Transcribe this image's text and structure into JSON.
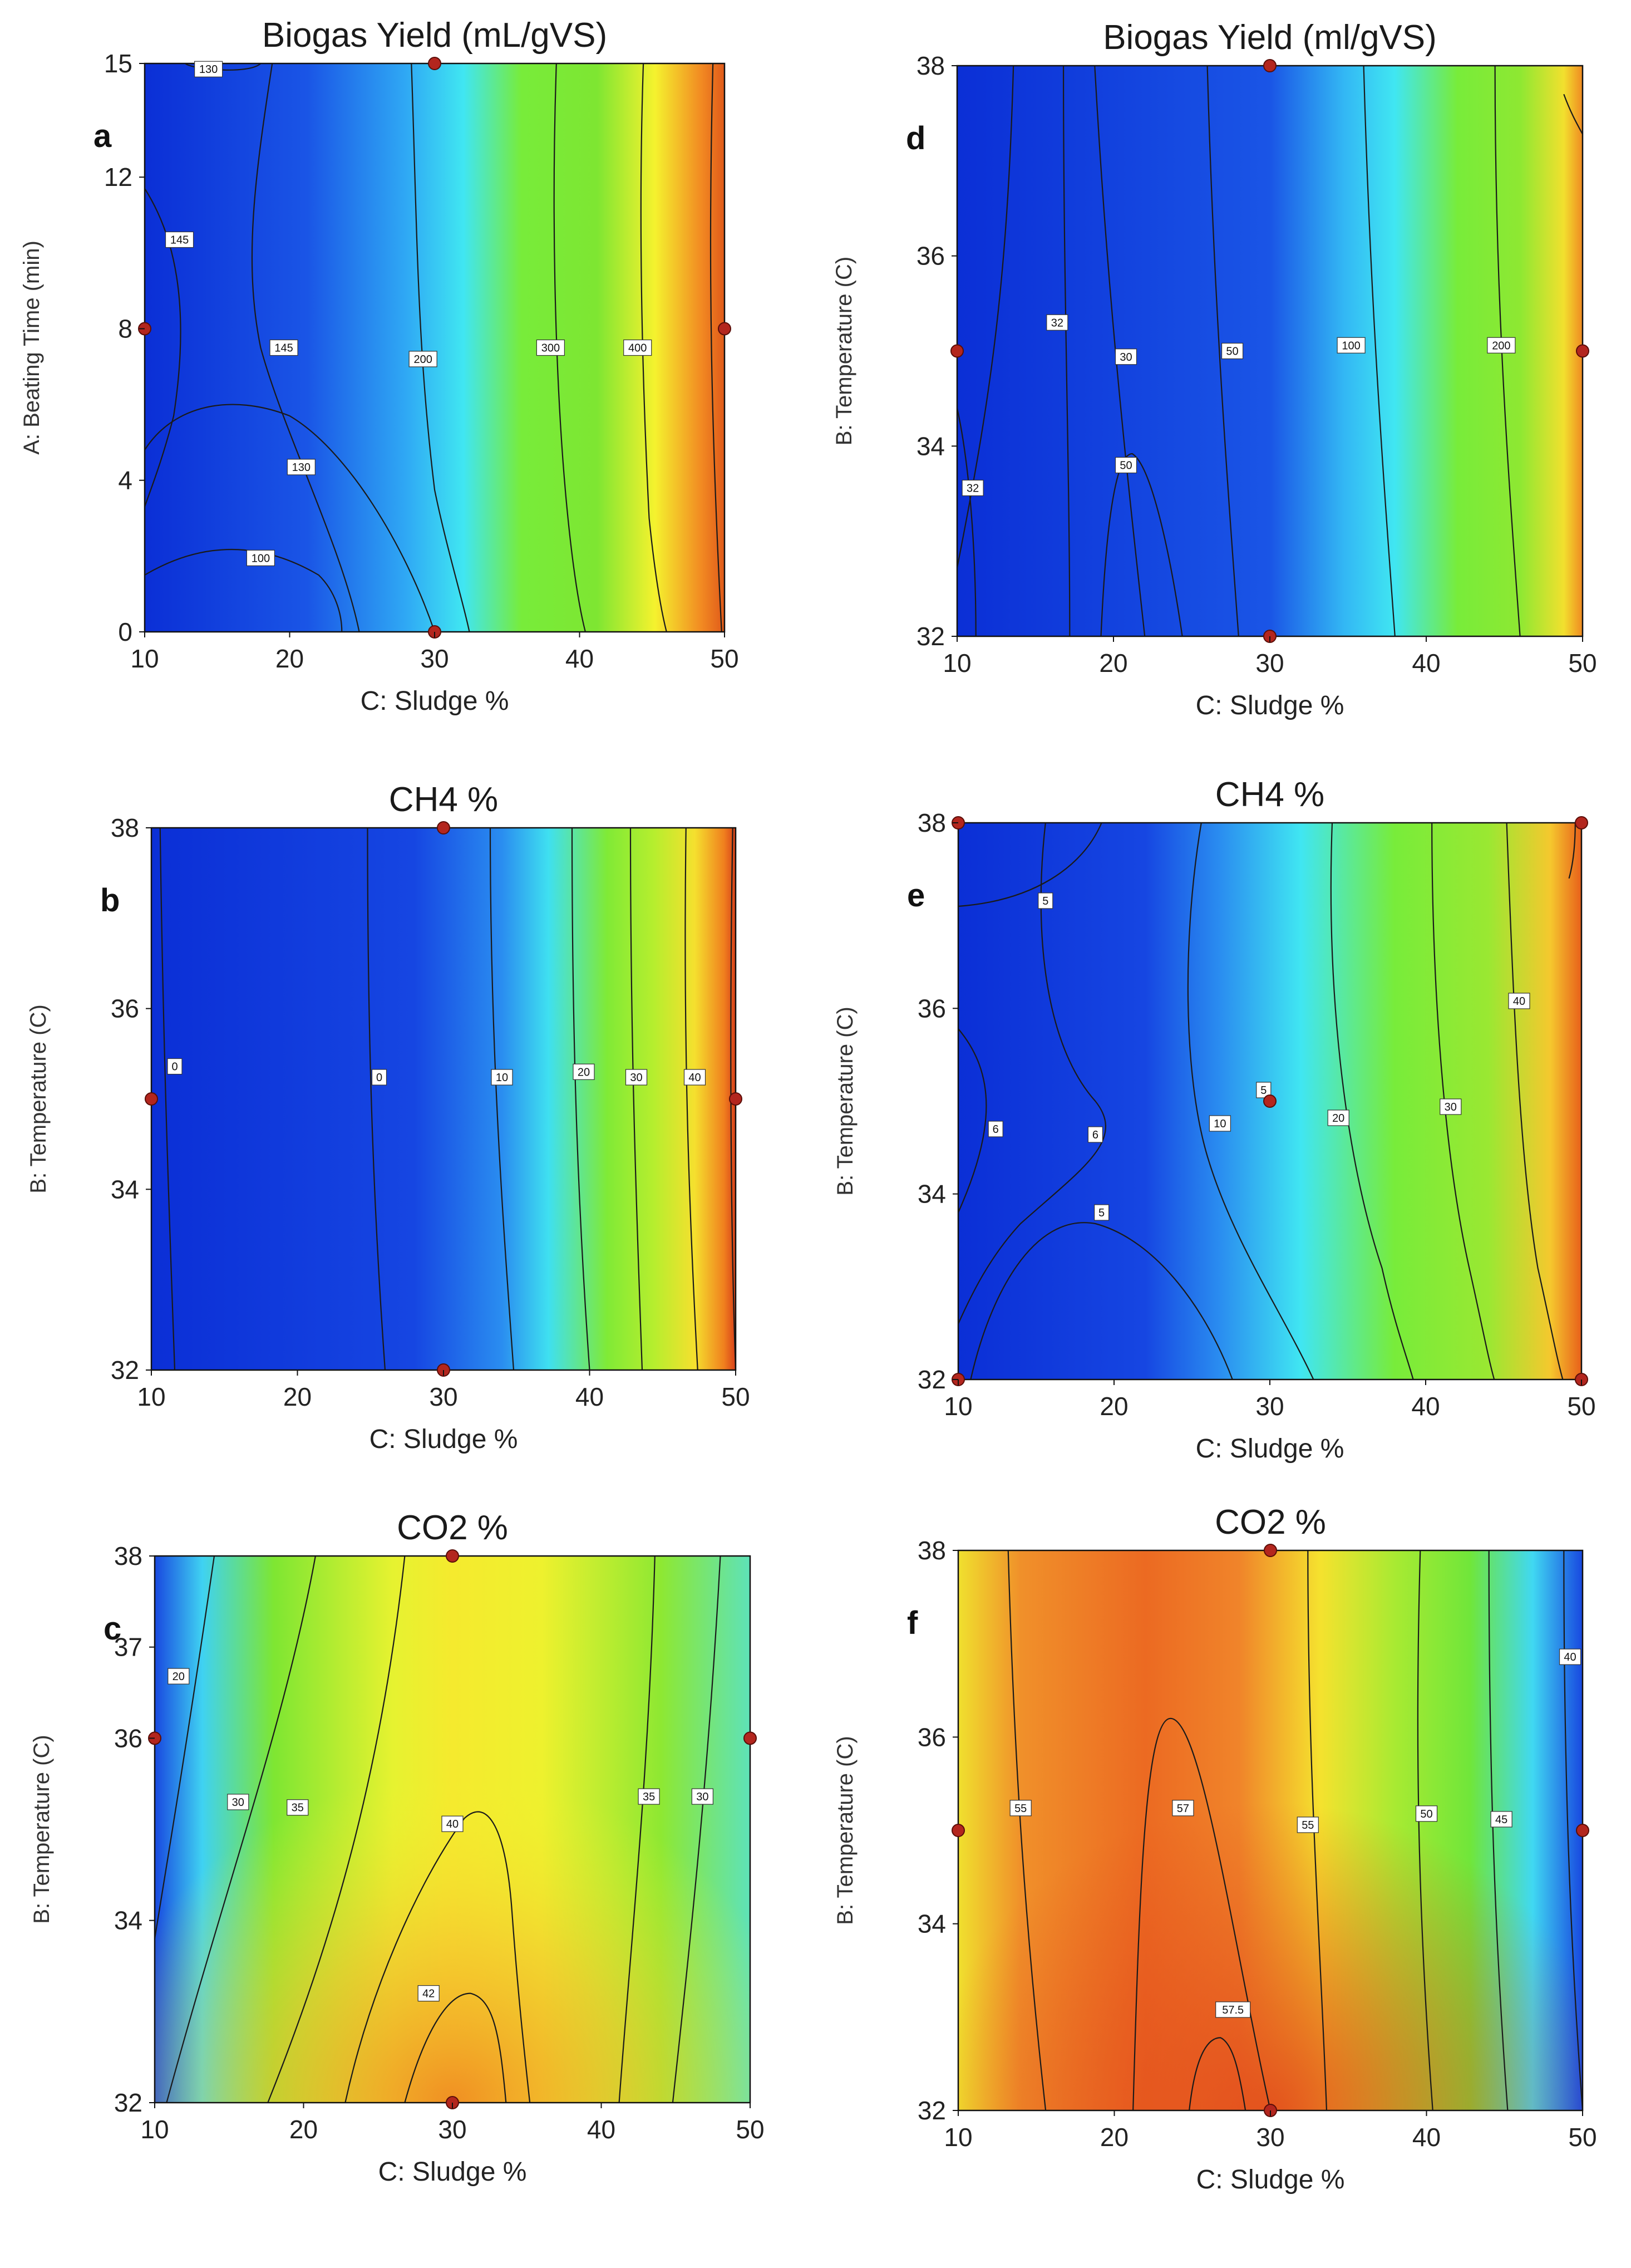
{
  "figure": {
    "colors": {
      "low": "#0b2fd6",
      "cyan": "#33ddf0",
      "green": "#66e62a",
      "yellow": "#f5f22e",
      "orange": "#f07a1e",
      "red": "#d8401a",
      "design_point": "#b3261e"
    }
  },
  "chart_data": [
    {
      "id": "a",
      "letter": "a",
      "type": "contour",
      "title": "Biogas Yield (mL/gVS)",
      "xlabel": "C: Sludge %",
      "ylabel": "A: Beating Time (min)",
      "xlim": [
        10,
        50
      ],
      "ylim": [
        0,
        15
      ],
      "xticks": [
        "10",
        "20",
        "30",
        "40",
        "50"
      ],
      "yticks": [
        "0",
        "4",
        "8",
        "12",
        "15"
      ],
      "contour_labels": [
        "130",
        "145",
        "145",
        "200",
        "300",
        "400",
        "130",
        "100"
      ],
      "design_points": [
        [
          30,
          15
        ],
        [
          10,
          8
        ],
        [
          50,
          8
        ],
        [
          30,
          0
        ]
      ]
    },
    {
      "id": "b",
      "letter": "b",
      "type": "contour",
      "title": "CH4 %",
      "xlabel": "C: Sludge %",
      "ylabel": "B: Temperature (C)",
      "xlim": [
        10,
        50
      ],
      "ylim": [
        32,
        38
      ],
      "xticks": [
        "10",
        "20",
        "30",
        "40",
        "50"
      ],
      "yticks": [
        "32",
        "34",
        "36",
        "38"
      ],
      "contour_labels": [
        "0",
        "0",
        "10",
        "20",
        "30",
        "40"
      ],
      "design_points": [
        [
          30,
          38
        ],
        [
          10,
          35
        ],
        [
          50,
          35
        ],
        [
          30,
          32
        ]
      ]
    },
    {
      "id": "c",
      "letter": "c",
      "type": "contour",
      "title": "CO2 %",
      "xlabel": "C: Sludge %",
      "ylabel": "B: Temperature (C)",
      "xlim": [
        10,
        50
      ],
      "ylim": [
        32,
        38
      ],
      "xticks": [
        "10",
        "20",
        "30",
        "40",
        "50"
      ],
      "yticks": [
        "32",
        "34",
        "36",
        "37",
        "38"
      ],
      "contour_labels": [
        "20",
        "30",
        "35",
        "40",
        "42",
        "35",
        "30"
      ],
      "design_points": [
        [
          30,
          38
        ],
        [
          10,
          36
        ],
        [
          50,
          36
        ],
        [
          30,
          32
        ]
      ]
    },
    {
      "id": "d",
      "letter": "d",
      "type": "contour",
      "title": "Biogas Yield (ml/gVS)",
      "xlabel": "C: Sludge %",
      "ylabel": "B: Temperature (C)",
      "xlim": [
        10,
        50
      ],
      "ylim": [
        32,
        38
      ],
      "xticks": [
        "10",
        "20",
        "30",
        "40",
        "50"
      ],
      "yticks": [
        "32",
        "34",
        "36",
        "38"
      ],
      "contour_labels": [
        "32",
        "32",
        "30",
        "50",
        "50",
        "100",
        "200"
      ],
      "design_points": [
        [
          30,
          38
        ],
        [
          10,
          35
        ],
        [
          50,
          35
        ],
        [
          30,
          32
        ]
      ]
    },
    {
      "id": "e",
      "letter": "e",
      "type": "contour",
      "title": "CH4 %",
      "xlabel": "C: Sludge %",
      "ylabel": "B: Temperature (C)",
      "xlim": [
        10,
        50
      ],
      "ylim": [
        32,
        38
      ],
      "xticks": [
        "10",
        "20",
        "30",
        "40",
        "50"
      ],
      "yticks": [
        "32",
        "34",
        "36",
        "38"
      ],
      "contour_labels": [
        "5",
        "6",
        "6",
        "5",
        "10",
        "20",
        "30",
        "40",
        "5"
      ],
      "design_points": [
        [
          10,
          38
        ],
        [
          50,
          38
        ],
        [
          30,
          35
        ],
        [
          10,
          32
        ],
        [
          50,
          32
        ]
      ]
    },
    {
      "id": "f",
      "letter": "f",
      "type": "contour",
      "title": "CO2 %",
      "xlabel": "C: Sludge %",
      "ylabel": "B: Temperature (C)",
      "xlim": [
        10,
        50
      ],
      "ylim": [
        32,
        38
      ],
      "xticks": [
        "10",
        "20",
        "30",
        "40",
        "50"
      ],
      "yticks": [
        "32",
        "34",
        "36",
        "38"
      ],
      "contour_labels": [
        "55",
        "57",
        "57.5",
        "55",
        "50",
        "45",
        "40"
      ],
      "design_points": [
        [
          30,
          38
        ],
        [
          10,
          35
        ],
        [
          50,
          35
        ],
        [
          30,
          32
        ]
      ]
    }
  ]
}
